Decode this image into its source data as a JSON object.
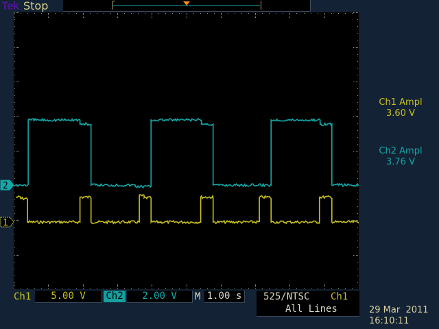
{
  "header": {
    "brand": "Tek",
    "acq_state": "Stop"
  },
  "colors": {
    "ch1": "#c8c020",
    "ch2": "#14a8a8",
    "trigger_marker": "#ff8a1a",
    "background": "#132234",
    "graticule": "#000000"
  },
  "measurements": [
    {
      "label": "Ch1 Ampl",
      "value": "3.60 V"
    },
    {
      "label": "Ch2 Ampl",
      "value": "3.76 V"
    }
  ],
  "footer": {
    "ch1_label": "Ch1",
    "ch1_scale": "5.00 V",
    "ch2_label": "Ch2",
    "ch2_scale": "2.00 V",
    "timebase_label": "M",
    "timebase": "1.00 s",
    "trigger_type": "525/NTSC",
    "trigger_source": "Ch1",
    "trigger_mode": "All Lines",
    "date": "29 Mar  2011",
    "time": "16:10:11"
  },
  "chart_data": {
    "type": "line",
    "xlim": [
      -5,
      5
    ],
    "xunit": "s",
    "x_divisions": 10,
    "y_divisions": 8,
    "grid": false,
    "series": [
      {
        "name": "Ch1",
        "marker": "1",
        "volts_per_div": 5.0,
        "offset_div": -1.08,
        "points": [
          [
            -4.94,
            3.6
          ],
          [
            -4.8,
            3.4
          ],
          [
            -4.6,
            3.4
          ],
          [
            -4.6,
            0
          ],
          [
            -3.08,
            0
          ],
          [
            -3.08,
            3.6
          ],
          [
            -2.76,
            3.4
          ],
          [
            -2.76,
            0
          ],
          [
            -1.36,
            0
          ],
          [
            -1.36,
            3.8
          ],
          [
            -1.22,
            3.5
          ],
          [
            -1.02,
            3.5
          ],
          [
            -1.02,
            0
          ],
          [
            0.42,
            0
          ],
          [
            0.42,
            3.6
          ],
          [
            0.78,
            3.4
          ],
          [
            0.78,
            0
          ],
          [
            2.12,
            0
          ],
          [
            2.12,
            3.6
          ],
          [
            2.46,
            3.4
          ],
          [
            2.46,
            0
          ],
          [
            3.86,
            0
          ],
          [
            3.86,
            3.6
          ],
          [
            4.22,
            3.4
          ],
          [
            4.22,
            0
          ],
          [
            5.02,
            0
          ]
        ]
      },
      {
        "name": "Ch2",
        "marker": "2",
        "volts_per_div": 2.0,
        "offset_div": 0,
        "points": [
          [
            -4.96,
            0
          ],
          [
            -4.58,
            0
          ],
          [
            -4.58,
            3.76
          ],
          [
            -3.08,
            3.76
          ],
          [
            -3.08,
            3.52
          ],
          [
            -2.76,
            3.52
          ],
          [
            -2.76,
            0
          ],
          [
            -1.48,
            0
          ],
          [
            -1.48,
            -0.08
          ],
          [
            -1.02,
            -0.08
          ],
          [
            -1.02,
            3.76
          ],
          [
            0.44,
            3.76
          ],
          [
            0.44,
            3.52
          ],
          [
            0.78,
            3.52
          ],
          [
            0.78,
            0
          ],
          [
            2.46,
            0
          ],
          [
            2.46,
            3.76
          ],
          [
            3.88,
            3.76
          ],
          [
            3.88,
            3.52
          ],
          [
            4.22,
            3.52
          ],
          [
            4.22,
            0
          ],
          [
            5.02,
            0
          ]
        ]
      }
    ]
  }
}
